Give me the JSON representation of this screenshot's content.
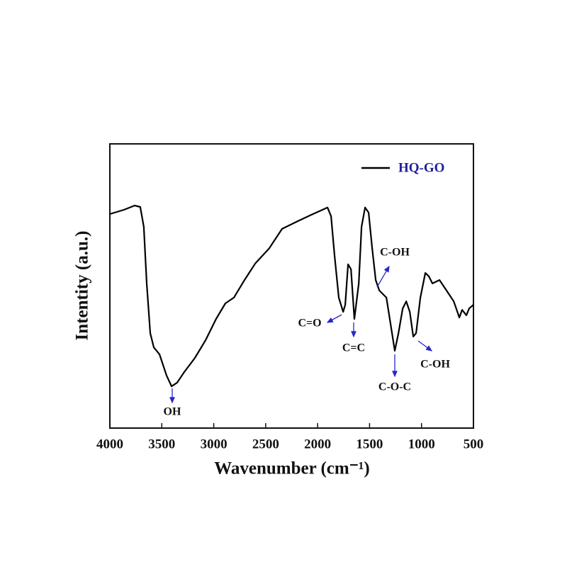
{
  "chart_data": {
    "type": "line",
    "x_label": "Wavenumber (cm⁻¹)",
    "y_label": "Intentity (a.u.)",
    "x": [
      4000,
      3864,
      3761,
      3707,
      3673,
      3645,
      3611,
      3577,
      3522,
      3454,
      3406,
      3352,
      3284,
      3181,
      3079,
      2977,
      2888,
      2806,
      2704,
      2601,
      2465,
      2342,
      2192,
      2056,
      1953,
      1905,
      1871,
      1837,
      1796,
      1754,
      1734,
      1707,
      1679,
      1646,
      1604,
      1577,
      1543,
      1509,
      1475,
      1441,
      1406,
      1338,
      1284,
      1257,
      1222,
      1181,
      1147,
      1113,
      1079,
      1052,
      1011,
      963,
      929,
      895,
      827,
      759,
      690,
      636,
      609,
      568,
      541,
      500
    ],
    "series": [
      {
        "name": "HQ-GO",
        "color": "#000000",
        "values": [
          75.3,
          76.8,
          78.3,
          77.8,
          70.8,
          50.9,
          33.4,
          28.4,
          25.9,
          18.5,
          14.7,
          16.0,
          19.7,
          24.7,
          30.9,
          38.4,
          43.9,
          45.9,
          52.1,
          57.9,
          63.3,
          70.1,
          72.8,
          75.1,
          76.8,
          77.6,
          74.6,
          60.8,
          45.9,
          40.9,
          43.4,
          57.6,
          55.9,
          38.4,
          50.9,
          70.8,
          77.6,
          75.8,
          63.3,
          52.1,
          48.4,
          45.9,
          33.4,
          27.2,
          33.4,
          42.1,
          44.6,
          40.9,
          32.2,
          33.4,
          45.9,
          54.6,
          53.4,
          50.9,
          52.1,
          48.4,
          44.6,
          38.9,
          41.6,
          39.7,
          42.1,
          43.4
        ]
      }
    ],
    "xlim": [
      4000,
      500
    ],
    "xticks": [
      4000,
      3500,
      3000,
      2500,
      2000,
      1500,
      1000,
      500
    ],
    "ylim": [
      0,
      100
    ],
    "legend": "upper right",
    "legend_text_color": "#1f1f9a",
    "annotation_color": "#2626c8",
    "annotations": [
      "OH",
      "C=O",
      "C=C",
      "C-OH",
      "C-O-C",
      "C-OH"
    ]
  }
}
